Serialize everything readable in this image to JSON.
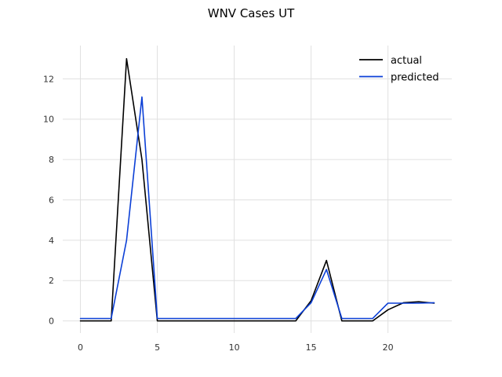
{
  "chart_data": {
    "type": "line",
    "title": "WNV Cases UT",
    "xlabel": "",
    "ylabel": "",
    "xlim": [
      -1.15,
      24.15
    ],
    "ylim": [
      -0.6,
      13.65
    ],
    "xticks": [
      0,
      5,
      10,
      15,
      20
    ],
    "yticks": [
      0,
      2,
      4,
      6,
      8,
      10,
      12
    ],
    "grid": true,
    "legend_position": "top-right",
    "x": [
      0,
      1,
      2,
      3,
      4,
      5,
      6,
      7,
      8,
      9,
      10,
      11,
      12,
      13,
      14,
      15,
      16,
      17,
      18,
      19,
      20,
      21,
      22,
      23
    ],
    "series": [
      {
        "name": "actual",
        "color": "#000000",
        "values": [
          0,
          0,
          0,
          13,
          8,
          0,
          0,
          0,
          0,
          0,
          0,
          0,
          0,
          0,
          0,
          1,
          3,
          0,
          0,
          0,
          0.55,
          0.9,
          0.95,
          0.88
        ]
      },
      {
        "name": "predicted",
        "color": "#0b3fd6",
        "values": [
          0.12,
          0.12,
          0.12,
          4,
          11.1,
          0.12,
          0.12,
          0.12,
          0.12,
          0.12,
          0.12,
          0.12,
          0.12,
          0.12,
          0.12,
          0.9,
          2.55,
          0.12,
          0.12,
          0.12,
          0.88,
          0.88,
          0.88,
          0.9
        ]
      }
    ]
  }
}
